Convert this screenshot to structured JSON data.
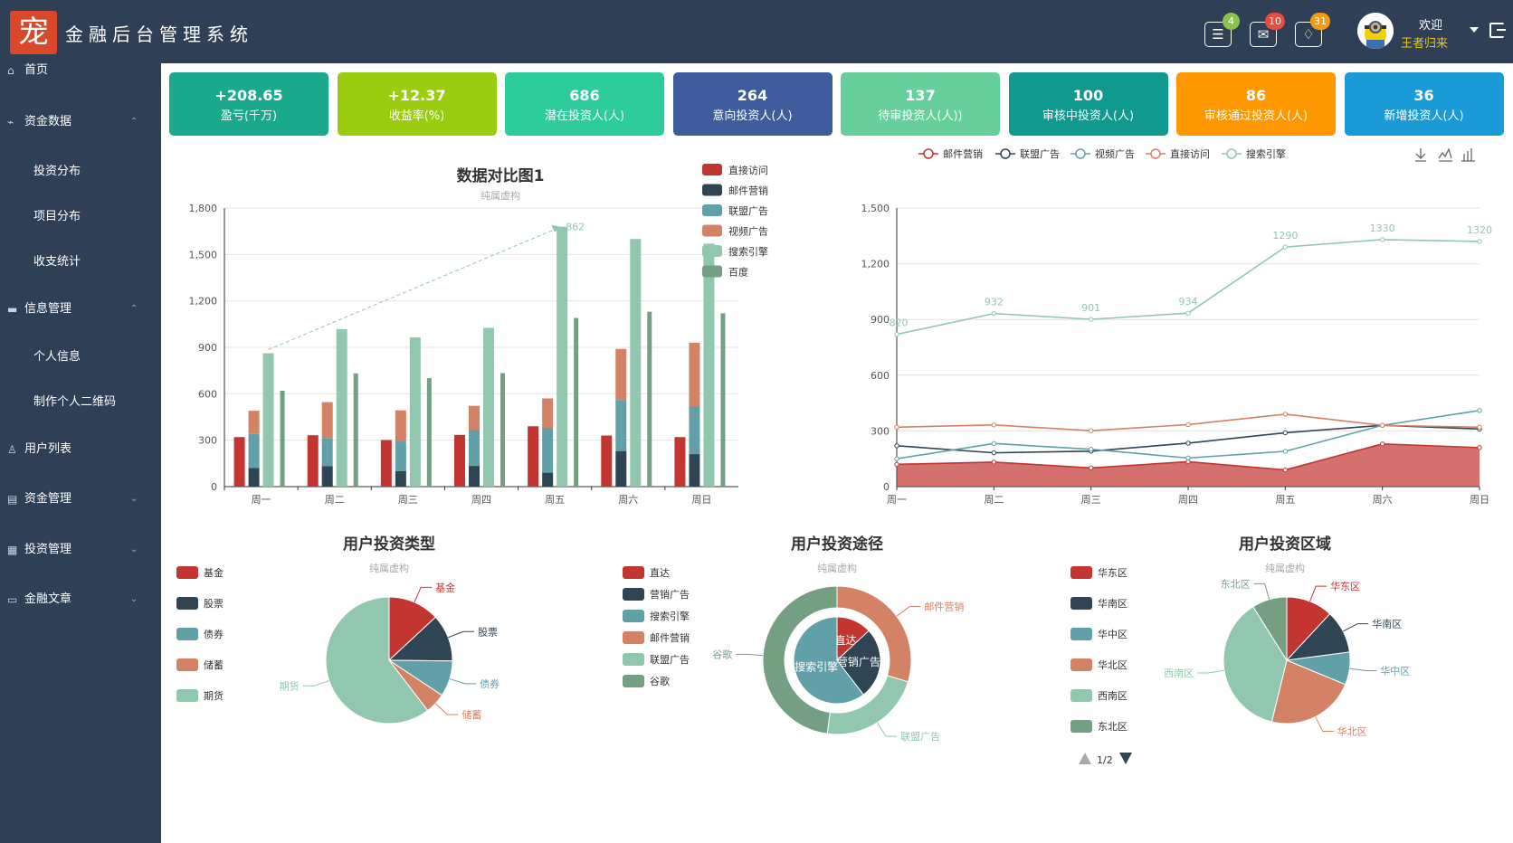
{
  "app": {
    "title": "金融后台管理系统",
    "logo_text": "宠"
  },
  "header": {
    "icons": [
      {
        "name": "layers-icon",
        "badge": "4",
        "color": "#8bc34a"
      },
      {
        "name": "mail-icon",
        "badge": "10",
        "color": "#e74c3c"
      },
      {
        "name": "bell-icon",
        "badge": "31",
        "color": "#f39c12"
      }
    ],
    "welcome": "欢迎",
    "username": "王者归来"
  },
  "sidebar": {
    "items": [
      {
        "label": "首页",
        "icon": "home-icon",
        "top": 78,
        "sub": false,
        "chev": ""
      },
      {
        "label": "资金数据",
        "icon": "chart-line-icon",
        "top": 135,
        "sub": false,
        "chev": "^"
      },
      {
        "label": "投资分布",
        "icon": "",
        "top": 190,
        "sub": true,
        "chev": ""
      },
      {
        "label": "项目分布",
        "icon": "",
        "top": 240,
        "sub": true,
        "chev": ""
      },
      {
        "label": "收支统计",
        "icon": "",
        "top": 290,
        "sub": true,
        "chev": ""
      },
      {
        "label": "信息管理",
        "icon": "folder-icon",
        "top": 342,
        "sub": false,
        "chev": "^"
      },
      {
        "label": "个人信息",
        "icon": "",
        "top": 395,
        "sub": true,
        "chev": ""
      },
      {
        "label": "制作个人二维码",
        "icon": "",
        "top": 445,
        "sub": true,
        "chev": ""
      },
      {
        "label": "用户列表",
        "icon": "user-icon",
        "top": 497,
        "sub": false,
        "chev": ""
      },
      {
        "label": "资金管理",
        "icon": "wallet-icon",
        "top": 552,
        "sub": false,
        "chev": "v"
      },
      {
        "label": "投资管理",
        "icon": "grid-icon",
        "top": 608,
        "sub": false,
        "chev": "v"
      },
      {
        "label": "金融文章",
        "icon": "doc-icon",
        "top": 663,
        "sub": false,
        "chev": "v"
      }
    ]
  },
  "stats": [
    {
      "value": "+208.65",
      "label": "盈亏(千万)",
      "color": "#1aa98a"
    },
    {
      "value": "+12.37",
      "label": "收益率(%)",
      "color": "#9acd0f"
    },
    {
      "value": "686",
      "label": "潜在投资人(人)",
      "color": "#2ecc9a"
    },
    {
      "value": "264",
      "label": "意向投资人(人)",
      "color": "#3f5c9c"
    },
    {
      "value": "137",
      "label": "待审投资人(人))",
      "color": "#66cf9c"
    },
    {
      "value": "100",
      "label": "审核中投资人(人)",
      "color": "#10998f"
    },
    {
      "value": "86",
      "label": "审核通过投资人(人)",
      "color": "#ff9800"
    },
    {
      "value": "36",
      "label": "新增投资人(人)",
      "color": "#1a9ad6"
    }
  ],
  "chart_data": [
    {
      "type": "bar",
      "title": "数据对比图1",
      "subtitle": "纯属虚构",
      "categories": [
        "周一",
        "周二",
        "周三",
        "周四",
        "周五",
        "周六",
        "周日"
      ],
      "ylim": [
        0,
        1800
      ],
      "yticks": [
        "1,800",
        "1,500",
        "1,200",
        "900",
        "600",
        "300",
        "0"
      ],
      "legend_position": "right",
      "series": [
        {
          "name": "直接访问",
          "color": "#c23531",
          "values": [
            320,
            332,
            301,
            334,
            390,
            330,
            320
          ],
          "stack": "a"
        },
        {
          "name": "邮件营销",
          "color": "#2f4554",
          "values": [
            120,
            132,
            101,
            134,
            90,
            230,
            210
          ],
          "stack": "b"
        },
        {
          "name": "联盟广告",
          "color": "#61a0a8",
          "values": [
            220,
            182,
            191,
            234,
            290,
            330,
            310
          ],
          "stack": "b"
        },
        {
          "name": "视频广告",
          "color": "#d48265",
          "values": [
            150,
            232,
            201,
            154,
            190,
            330,
            410
          ],
          "stack": "b"
        },
        {
          "name": "搜索引擎",
          "color": "#91c7ae",
          "values": [
            862,
            1018,
            964,
            1026,
            1679,
            1600,
            1570
          ],
          "stack": "c"
        },
        {
          "name": "百度",
          "color": "#749f83",
          "values": [
            620,
            732,
            701,
            734,
            1090,
            1130,
            1120
          ],
          "stack": "d"
        }
      ],
      "annotation": "862"
    },
    {
      "type": "line",
      "categories": [
        "周一",
        "周二",
        "周三",
        "周四",
        "周五",
        "周六",
        "周日"
      ],
      "ylim": [
        0,
        1500
      ],
      "yticks": [
        "1,500",
        "1,200",
        "900",
        "600",
        "300",
        "0"
      ],
      "legend_position": "top",
      "toolbox": [
        "download-icon",
        "line-chart-icon",
        "bar-chart-icon"
      ],
      "series": [
        {
          "name": "邮件营销",
          "color": "#c23531",
          "values": [
            120,
            132,
            101,
            134,
            90,
            230,
            210
          ],
          "area": true
        },
        {
          "name": "联盟广告",
          "color": "#2f4554",
          "values": [
            220,
            182,
            191,
            234,
            290,
            330,
            310
          ]
        },
        {
          "name": "视频广告",
          "color": "#61a0a8",
          "values": [
            150,
            232,
            201,
            154,
            190,
            330,
            410
          ]
        },
        {
          "name": "直接访问",
          "color": "#d48265",
          "values": [
            320,
            332,
            301,
            334,
            390,
            330,
            320
          ]
        },
        {
          "name": "搜索引擎",
          "color": "#91c7ae",
          "values": [
            820,
            932,
            901,
            934,
            1290,
            1330,
            1320
          ],
          "labels": true
        }
      ]
    },
    {
      "type": "pie",
      "title": "用户投资类型",
      "subtitle": "纯属虚构",
      "legend_position": "left",
      "slices": [
        {
          "name": "基金",
          "value": 335,
          "color": "#c23531"
        },
        {
          "name": "股票",
          "value": 310,
          "color": "#2f4554"
        },
        {
          "name": "债券",
          "value": 234,
          "color": "#61a0a8"
        },
        {
          "name": "储蓄",
          "value": 135,
          "color": "#d48265"
        },
        {
          "name": "期货",
          "value": 1548,
          "color": "#91c7ae"
        }
      ]
    },
    {
      "type": "pie",
      "title": "用户投资途径",
      "subtitle": "纯属虚构",
      "legend_position": "left",
      "inner": [
        {
          "name": "直达",
          "value": 335,
          "color": "#c23531"
        },
        {
          "name": "营销广告",
          "value": 679,
          "color": "#2f4554"
        },
        {
          "name": "搜索引擎",
          "value": 1548,
          "color": "#61a0a8"
        }
      ],
      "outer": [
        {
          "name": "邮件营销",
          "value": 310,
          "color": "#d48265"
        },
        {
          "name": "联盟广告",
          "value": 234,
          "color": "#91c7ae"
        },
        {
          "name": "谷歌",
          "value": 500,
          "color": "#749f83"
        }
      ],
      "legend": [
        {
          "name": "直达",
          "color": "#c23531"
        },
        {
          "name": "营销广告",
          "color": "#2f4554"
        },
        {
          "name": "搜索引擎",
          "color": "#61a0a8"
        },
        {
          "name": "邮件营销",
          "color": "#d48265"
        },
        {
          "name": "联盟广告",
          "color": "#91c7ae"
        },
        {
          "name": "谷歌",
          "color": "#749f83"
        }
      ]
    },
    {
      "type": "pie",
      "title": "用户投资区域",
      "subtitle": "纯属虚构",
      "legend_position": "left",
      "pager": "1/2",
      "slices": [
        {
          "name": "华东区",
          "value": 335,
          "color": "#c23531"
        },
        {
          "name": "华南区",
          "value": 310,
          "color": "#2f4554"
        },
        {
          "name": "华中区",
          "value": 234,
          "color": "#61a0a8"
        },
        {
          "name": "华北区",
          "value": 635,
          "color": "#d48265"
        },
        {
          "name": "西南区",
          "value": 1048,
          "color": "#91c7ae"
        },
        {
          "name": "东北区",
          "value": 251,
          "color": "#749f83"
        }
      ]
    }
  ]
}
